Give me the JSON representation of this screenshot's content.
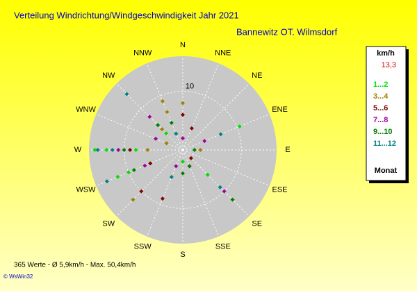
{
  "chart_data": {
    "type": "polar-scatter",
    "title": "Verteilung Windrichtung/Windgeschwindigkeit  Jahr 2021",
    "subtitle": "Bannewitz OT. Wilmsdorf",
    "categories": [
      "N",
      "NNE",
      "NE",
      "ENE",
      "E",
      "ESE",
      "SE",
      "SSE",
      "S",
      "SSW",
      "SW",
      "WSW",
      "W",
      "WNW",
      "NW",
      "NNW"
    ],
    "rlim": [
      0,
      16
    ],
    "rticks": [
      10
    ],
    "legend_title": "km/h",
    "legend_value": "13,3",
    "legend_footer": "Monat",
    "series": [
      {
        "name": "1...2",
        "color": "#00e000",
        "x": [
          "WSW",
          "WSW",
          "W",
          "W",
          "ENE",
          "NW",
          "SE",
          "S",
          "NNW",
          "W"
        ],
        "values": [
          12,
          10,
          8,
          13,
          10.5,
          4,
          6,
          2,
          3,
          15
        ]
      },
      {
        "name": "3...4",
        "color": "#a08000",
        "x": [
          "NNW",
          "NNW",
          "NW",
          "W",
          "WNW",
          "SW",
          "E",
          "N"
        ],
        "values": [
          9,
          7,
          5,
          6,
          3,
          12,
          3,
          8
        ]
      },
      {
        "name": "5...6",
        "color": "#800000",
        "x": [
          "SSW",
          "SW",
          "N",
          "NNE",
          "SE",
          "W",
          "WSW",
          "SSE"
        ],
        "values": [
          9,
          10,
          6,
          4,
          2,
          9,
          6,
          3
        ]
      },
      {
        "name": "7...8",
        "color": "#a000a0",
        "x": [
          "W",
          "WSW",
          "SE",
          "NW",
          "SSW",
          "ENE",
          "N",
          "WNW"
        ],
        "values": [
          11,
          7,
          10,
          8,
          3,
          4,
          2,
          5
        ]
      },
      {
        "name": "9...10",
        "color": "#008000",
        "x": [
          "W",
          "WSW",
          "SE",
          "NW",
          "NNW",
          "S",
          "SSE",
          "E"
        ],
        "values": [
          10,
          9,
          12,
          6,
          5,
          4,
          3,
          2
        ]
      },
      {
        "name": "11...12",
        "color": "#008080",
        "x": [
          "W",
          "WSW",
          "NW",
          "W",
          "SE",
          "SSW",
          "NNW",
          "ENE"
        ],
        "values": [
          14.5,
          14,
          13.5,
          12,
          9,
          5,
          3,
          7
        ]
      }
    ],
    "footer": "365 Werte  -  Ø 5,9km/h  -  Max. 50,4km/h",
    "credit": "© WsWin32"
  }
}
